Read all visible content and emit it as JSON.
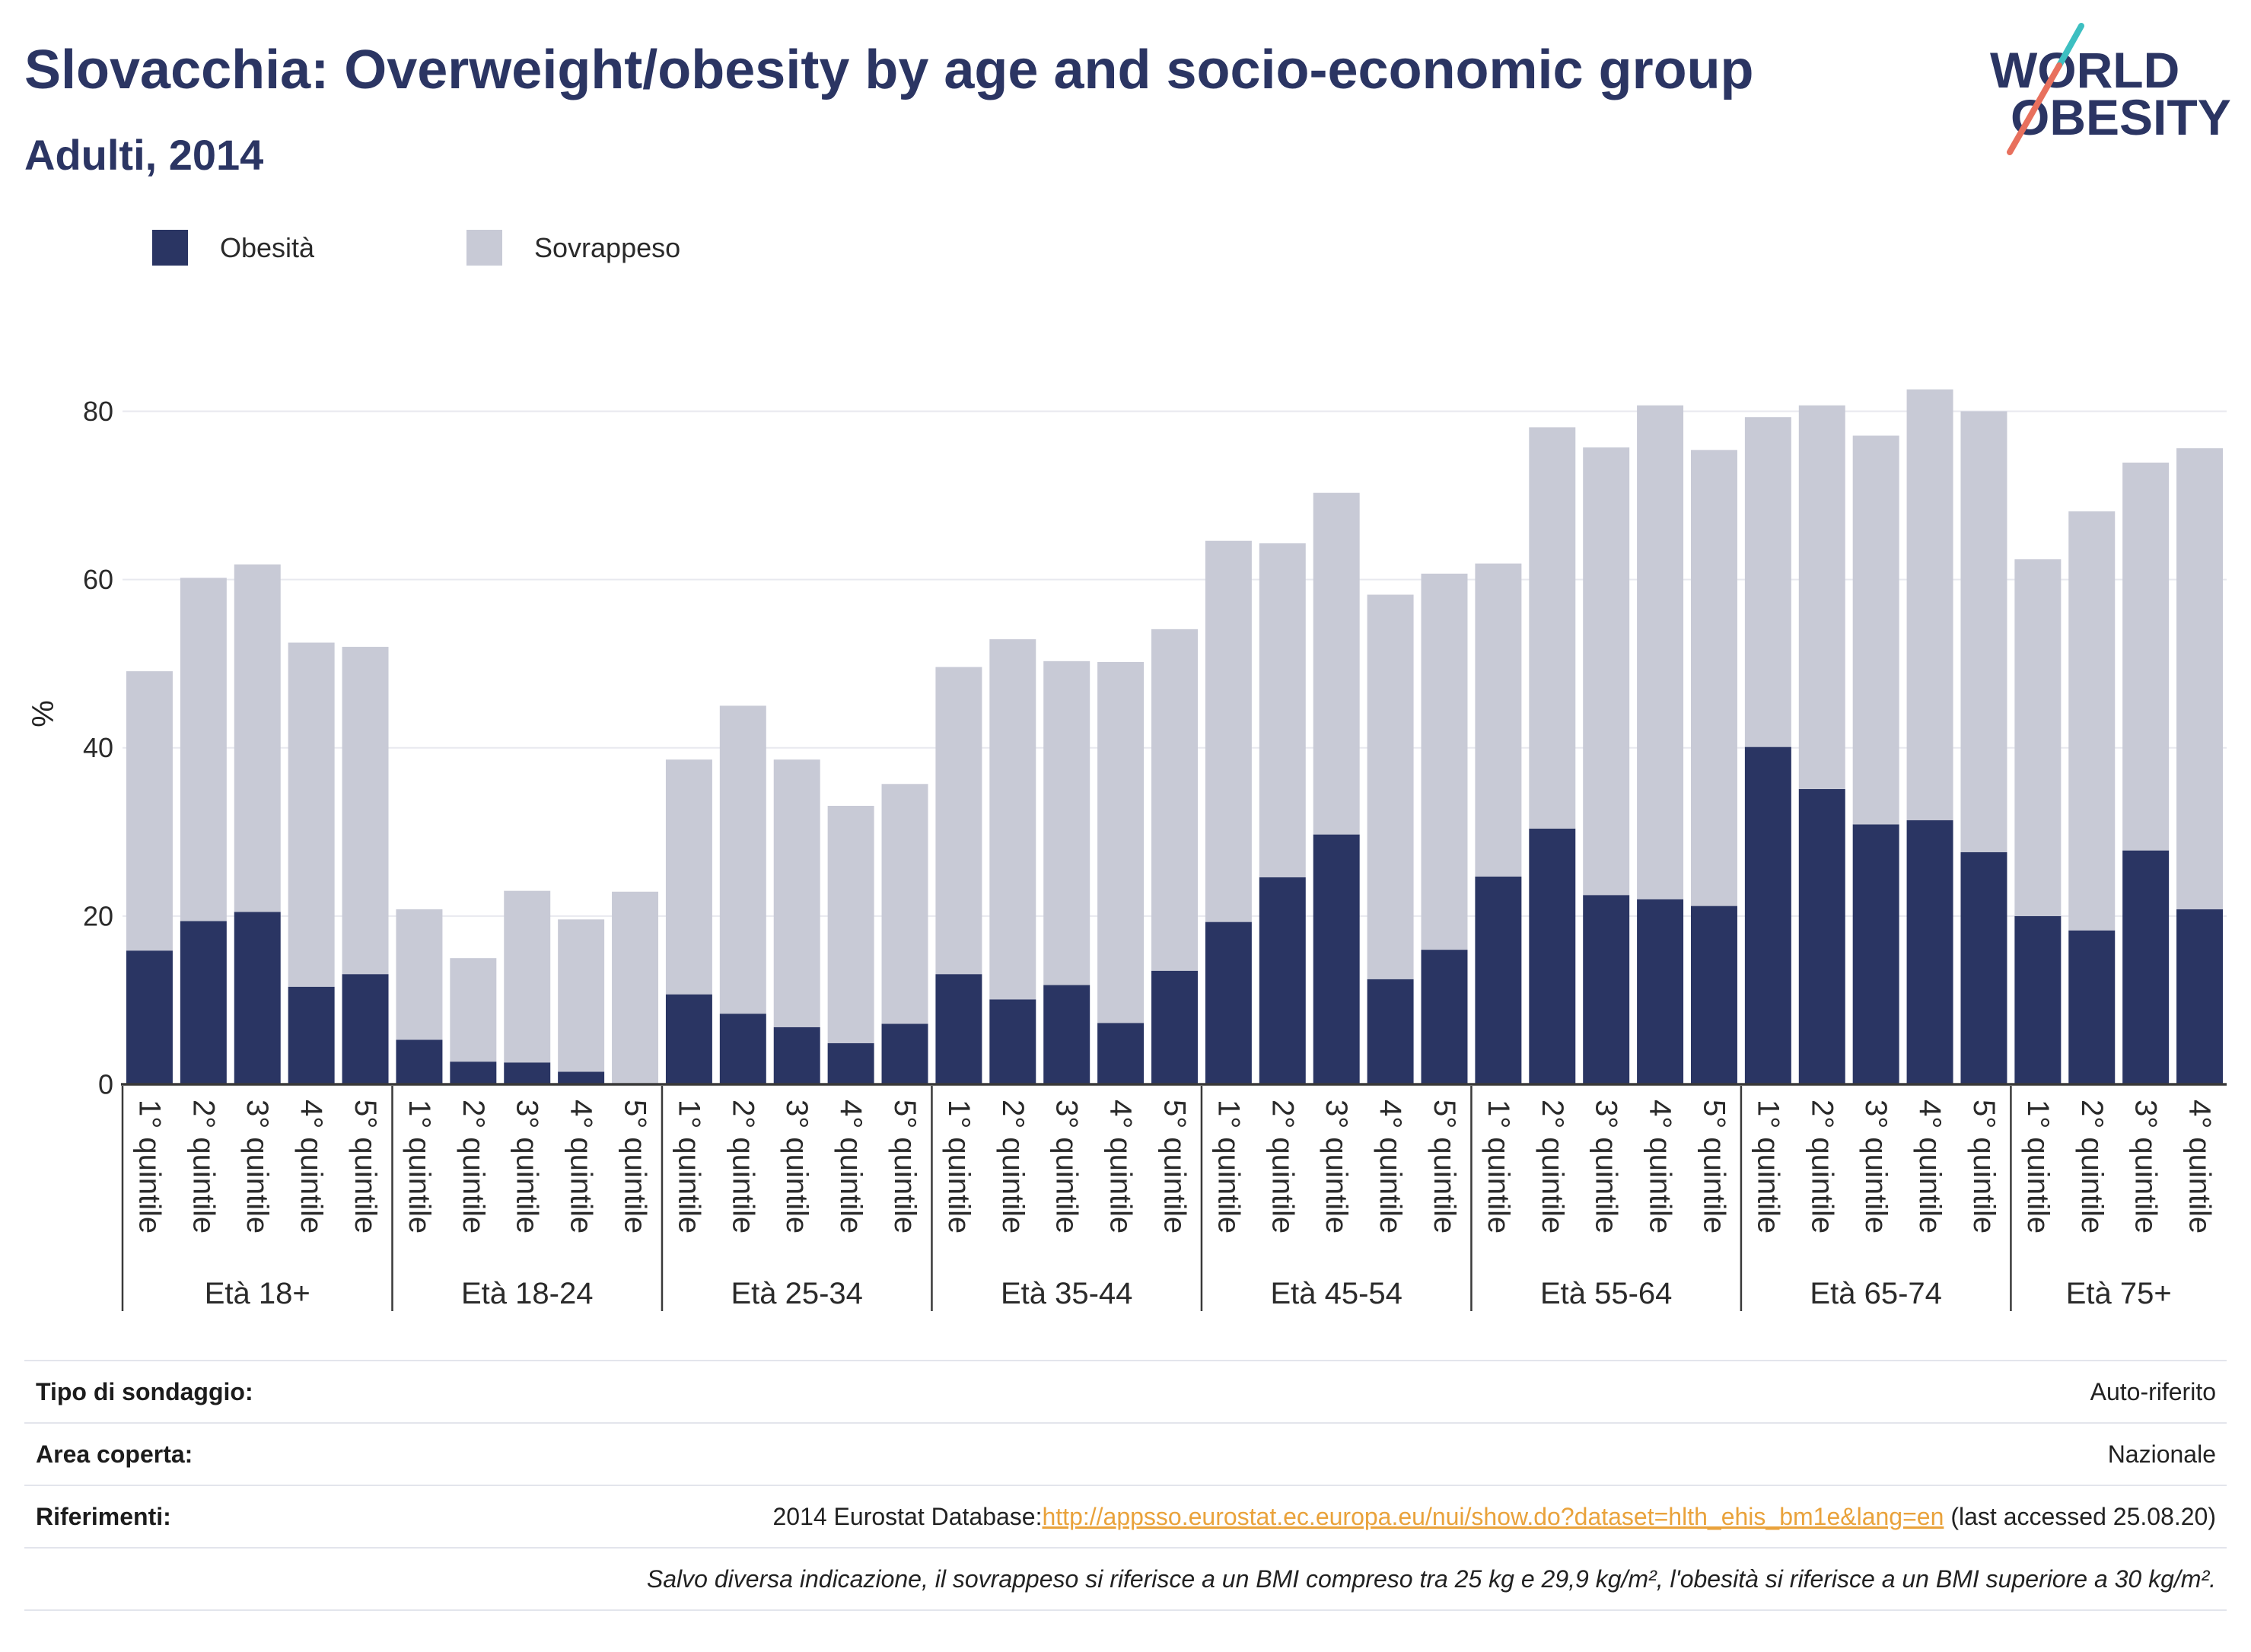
{
  "title": "Slovacchia: Overweight/obesity by age and socio-economic group",
  "subtitle": "Adulti, 2014",
  "logo": {
    "line1": "WORLD",
    "line2": "OBESITY"
  },
  "colors": {
    "title": "#2b3563",
    "link": "#e9a23b",
    "logo_text": "#2b3563",
    "logo_slash_top": "#3dbfc1",
    "logo_slash_bottom": "#e8705d"
  },
  "chart_data": {
    "type": "bar",
    "stacked": true,
    "ylabel": "%",
    "ylim": [
      0,
      88
    ],
    "yticks": [
      0,
      20,
      40,
      60,
      80
    ],
    "grid": true,
    "legend": "top-left",
    "groups": [
      {
        "label": "Età 18+",
        "categories": [
          "1° quintile",
          "2° quintile",
          "3° quintile",
          "4° quintile",
          "5° quintile"
        ]
      },
      {
        "label": "Età 18-24",
        "categories": [
          "1° quintile",
          "2° quintile",
          "3° quintile",
          "4° quintile",
          "5° quintile"
        ]
      },
      {
        "label": "Età 25-34",
        "categories": [
          "1° quintile",
          "2° quintile",
          "3° quintile",
          "4° quintile",
          "5° quintile"
        ]
      },
      {
        "label": "Età 35-44",
        "categories": [
          "1° quintile",
          "2° quintile",
          "3° quintile",
          "4° quintile",
          "5° quintile"
        ]
      },
      {
        "label": "Età 45-54",
        "categories": [
          "1° quintile",
          "2° quintile",
          "3° quintile",
          "4° quintile",
          "5° quintile"
        ]
      },
      {
        "label": "Età 55-64",
        "categories": [
          "1° quintile",
          "2° quintile",
          "3° quintile",
          "4° quintile",
          "5° quintile"
        ]
      },
      {
        "label": "Età 65-74",
        "categories": [
          "1° quintile",
          "2° quintile",
          "3° quintile",
          "4° quintile",
          "5° quintile"
        ]
      },
      {
        "label": "Età 75+",
        "categories": [
          "1° quintile",
          "2° quintile",
          "3° quintile",
          "4° quintile"
        ]
      }
    ],
    "series": [
      {
        "name": "Obesità",
        "color": "#2a3563",
        "values": [
          [
            15.9,
            19.4,
            20.5,
            11.6,
            13.1
          ],
          [
            5.3,
            2.7,
            2.6,
            1.5,
            0
          ],
          [
            10.7,
            8.4,
            6.8,
            4.9,
            7.2
          ],
          [
            13.1,
            10.1,
            11.8,
            7.3,
            13.5
          ],
          [
            19.3,
            24.6,
            29.7,
            12.5,
            16.0
          ],
          [
            24.7,
            30.4,
            22.5,
            22.0,
            21.2
          ],
          [
            40.1,
            35.1,
            30.9,
            31.4,
            27.6
          ],
          [
            20.0,
            18.3,
            27.8,
            20.8
          ]
        ]
      },
      {
        "name": "Sovrappeso",
        "color": "#c8cad6",
        "values": [
          [
            33.2,
            40.8,
            41.3,
            40.9,
            38.9
          ],
          [
            15.5,
            12.3,
            20.4,
            18.1,
            22.9
          ],
          [
            27.9,
            36.6,
            31.8,
            28.2,
            28.5
          ],
          [
            36.5,
            42.8,
            38.5,
            42.9,
            40.6
          ],
          [
            45.3,
            39.7,
            40.6,
            45.7,
            44.7
          ],
          [
            37.2,
            47.7,
            53.2,
            58.7,
            54.2
          ],
          [
            39.2,
            45.6,
            46.2,
            51.2,
            52.4
          ],
          [
            42.4,
            49.8,
            46.1,
            54.8
          ]
        ]
      }
    ]
  },
  "info_table": {
    "survey_type": {
      "label": "Tipo di sondaggio:",
      "value": "Auto-riferito"
    },
    "area": {
      "label": "Area coperta:",
      "value": "Nazionale"
    },
    "references": {
      "label": "Riferimenti:",
      "source": "2014 Eurostat Database:",
      "link": "http://appsso.eurostat.ec.europa.eu/nui/show.do?dataset=hlth_ehis_bm1e&lang=en",
      "accessed": "(last accessed 25.08.20)"
    },
    "note": "Salvo diversa indicazione, il sovrappeso si riferisce a un BMI compreso tra 25 kg e 29,9 kg/m², l'obesità si riferisce a un BMI superiore a 30 kg/m²."
  }
}
